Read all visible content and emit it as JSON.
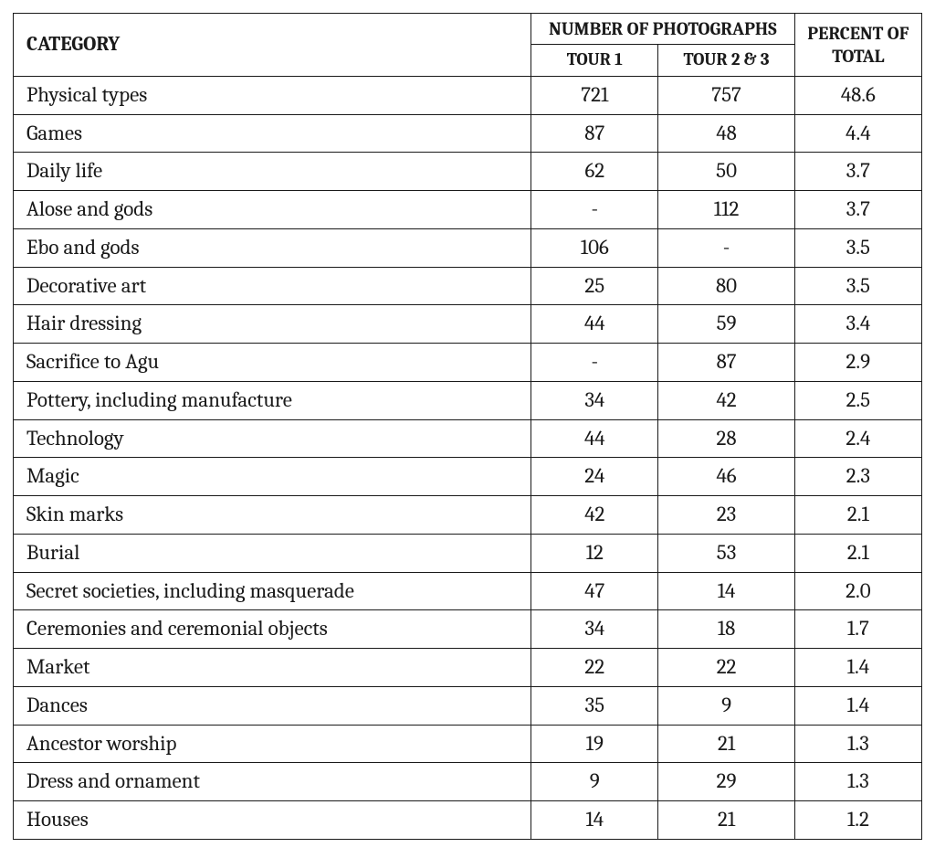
{
  "table": {
    "type": "table",
    "background_color": "#ffffff",
    "border_color": "#1a1a1a",
    "text_color": "#1a1a1a",
    "header_fontsize_main": 22,
    "header_fontsize_group": 20,
    "header_fontsize_sub": 19,
    "body_fontsize": 23,
    "column_widths_pct": [
      57,
      14,
      15,
      14
    ],
    "headers": {
      "category": "CATEGORY",
      "group": "NUMBER OF PHOTOGRAPHS",
      "tour1": "TOUR 1",
      "tour23": "TOUR 2 & 3",
      "percent": "PERCENT OF TOTAL"
    },
    "rows": [
      {
        "category": "Physical types",
        "tour1": "721",
        "tour23": "757",
        "percent": "48.6"
      },
      {
        "category": "Games",
        "tour1": "87",
        "tour23": "48",
        "percent": "4.4"
      },
      {
        "category": "Daily life",
        "tour1": "62",
        "tour23": "50",
        "percent": "3.7"
      },
      {
        "category": "Alose and gods",
        "tour1": "-",
        "tour23": "112",
        "percent": "3.7"
      },
      {
        "category": "Ebo and gods",
        "tour1": "106",
        "tour23": "-",
        "percent": "3.5"
      },
      {
        "category": "Decorative art",
        "tour1": "25",
        "tour23": "80",
        "percent": "3.5"
      },
      {
        "category": "Hair dressing",
        "tour1": "44",
        "tour23": "59",
        "percent": "3.4"
      },
      {
        "category": "Sacrifice to Agu",
        "tour1": "-",
        "tour23": "87",
        "percent": "2.9"
      },
      {
        "category": "Pottery, including manufacture",
        "tour1": "34",
        "tour23": "42",
        "percent": "2.5"
      },
      {
        "category": "Technology",
        "tour1": "44",
        "tour23": "28",
        "percent": "2.4"
      },
      {
        "category": "Magic",
        "tour1": "24",
        "tour23": "46",
        "percent": "2.3"
      },
      {
        "category": "Skin marks",
        "tour1": "42",
        "tour23": "23",
        "percent": "2.1"
      },
      {
        "category": "Burial",
        "tour1": "12",
        "tour23": "53",
        "percent": "2.1"
      },
      {
        "category": "Secret societies, including masquerade",
        "tour1": "47",
        "tour23": "14",
        "percent": "2.0"
      },
      {
        "category": "Ceremonies and ceremonial objects",
        "tour1": "34",
        "tour23": "18",
        "percent": "1.7"
      },
      {
        "category": "Market",
        "tour1": "22",
        "tour23": "22",
        "percent": "1.4"
      },
      {
        "category": "Dances",
        "tour1": "35",
        "tour23": "9",
        "percent": "1.4"
      },
      {
        "category": "Ancestor worship",
        "tour1": "19",
        "tour23": "21",
        "percent": "1.3"
      },
      {
        "category": "Dress and ornament",
        "tour1": "9",
        "tour23": "29",
        "percent": "1.3"
      },
      {
        "category": "Houses",
        "tour1": "14",
        "tour23": "21",
        "percent": "1.2"
      }
    ]
  }
}
